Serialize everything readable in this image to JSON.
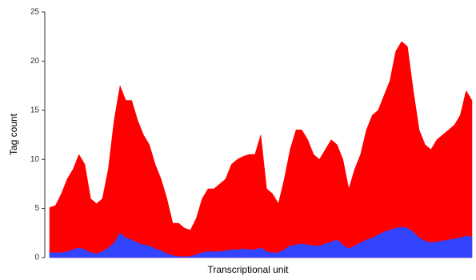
{
  "chart_data": {
    "type": "area",
    "x_label": "Transcriptional unit",
    "y_label": "Tag count",
    "categories": [
      null,
      null,
      null,
      null,
      null,
      null,
      null,
      null,
      null,
      null,
      null,
      null,
      null,
      null,
      null,
      null,
      null,
      null,
      null,
      null,
      null,
      null,
      null,
      null,
      null,
      null,
      null,
      null,
      null,
      null,
      null,
      null,
      null,
      null,
      null,
      null,
      null,
      null,
      null,
      null,
      null,
      null,
      null,
      null,
      null,
      null,
      null,
      null,
      null,
      null,
      null,
      null,
      null,
      null,
      null,
      null,
      null,
      null,
      null,
      null,
      null,
      null,
      null,
      null,
      null,
      null,
      null,
      null,
      null,
      null,
      null,
      null,
      null
    ],
    "series": [
      {
        "color": "#ff0000",
        "values": [
          5.1,
          5.3,
          6.5,
          8,
          9,
          10.5,
          9.5,
          6,
          5.5,
          6,
          9,
          14,
          17.5,
          16,
          16,
          14,
          12.5,
          11.5,
          9.5,
          8,
          6,
          3.5,
          3.5,
          3,
          2.8,
          4,
          6,
          7,
          7,
          7.5,
          8,
          9.5,
          10,
          10.3,
          10.5,
          10.5,
          12.5,
          7,
          6.5,
          5.5,
          8,
          11,
          13,
          13,
          12,
          10.5,
          10,
          11,
          12,
          11.5,
          10,
          7,
          9,
          10.5,
          13,
          14.5,
          15,
          16.5,
          18,
          21,
          22,
          21.5,
          17,
          13,
          11.5,
          11,
          12,
          12.5,
          13,
          13.5,
          14.5,
          17,
          16
        ]
      },
      {
        "color": "#3344ff",
        "values": [
          0.5,
          0.5,
          0.5,
          0.6,
          0.8,
          1,
          0.8,
          0.5,
          0.4,
          0.6,
          1,
          1.5,
          2.5,
          2,
          1.8,
          1.5,
          1.3,
          1.2,
          0.9,
          0.7,
          0.4,
          0.2,
          0.1,
          0.1,
          0.1,
          0.3,
          0.5,
          0.6,
          0.6,
          0.6,
          0.7,
          0.8,
          0.8,
          0.9,
          0.8,
          0.8,
          1,
          0.6,
          0.5,
          0.5,
          0.8,
          1.2,
          1.3,
          1.4,
          1.3,
          1.2,
          1.2,
          1.4,
          1.6,
          1.8,
          1.3,
          0.9,
          1.2,
          1.5,
          1.8,
          2,
          2.3,
          2.6,
          2.8,
          3,
          3.1,
          3,
          2.6,
          2,
          1.7,
          1.5,
          1.6,
          1.7,
          1.8,
          1.9,
          2,
          2.2,
          2.1
        ]
      }
    ],
    "ylim": [
      0,
      25
    ],
    "yticks": [
      0,
      5,
      10,
      15,
      20,
      25
    ],
    "grid": false
  }
}
